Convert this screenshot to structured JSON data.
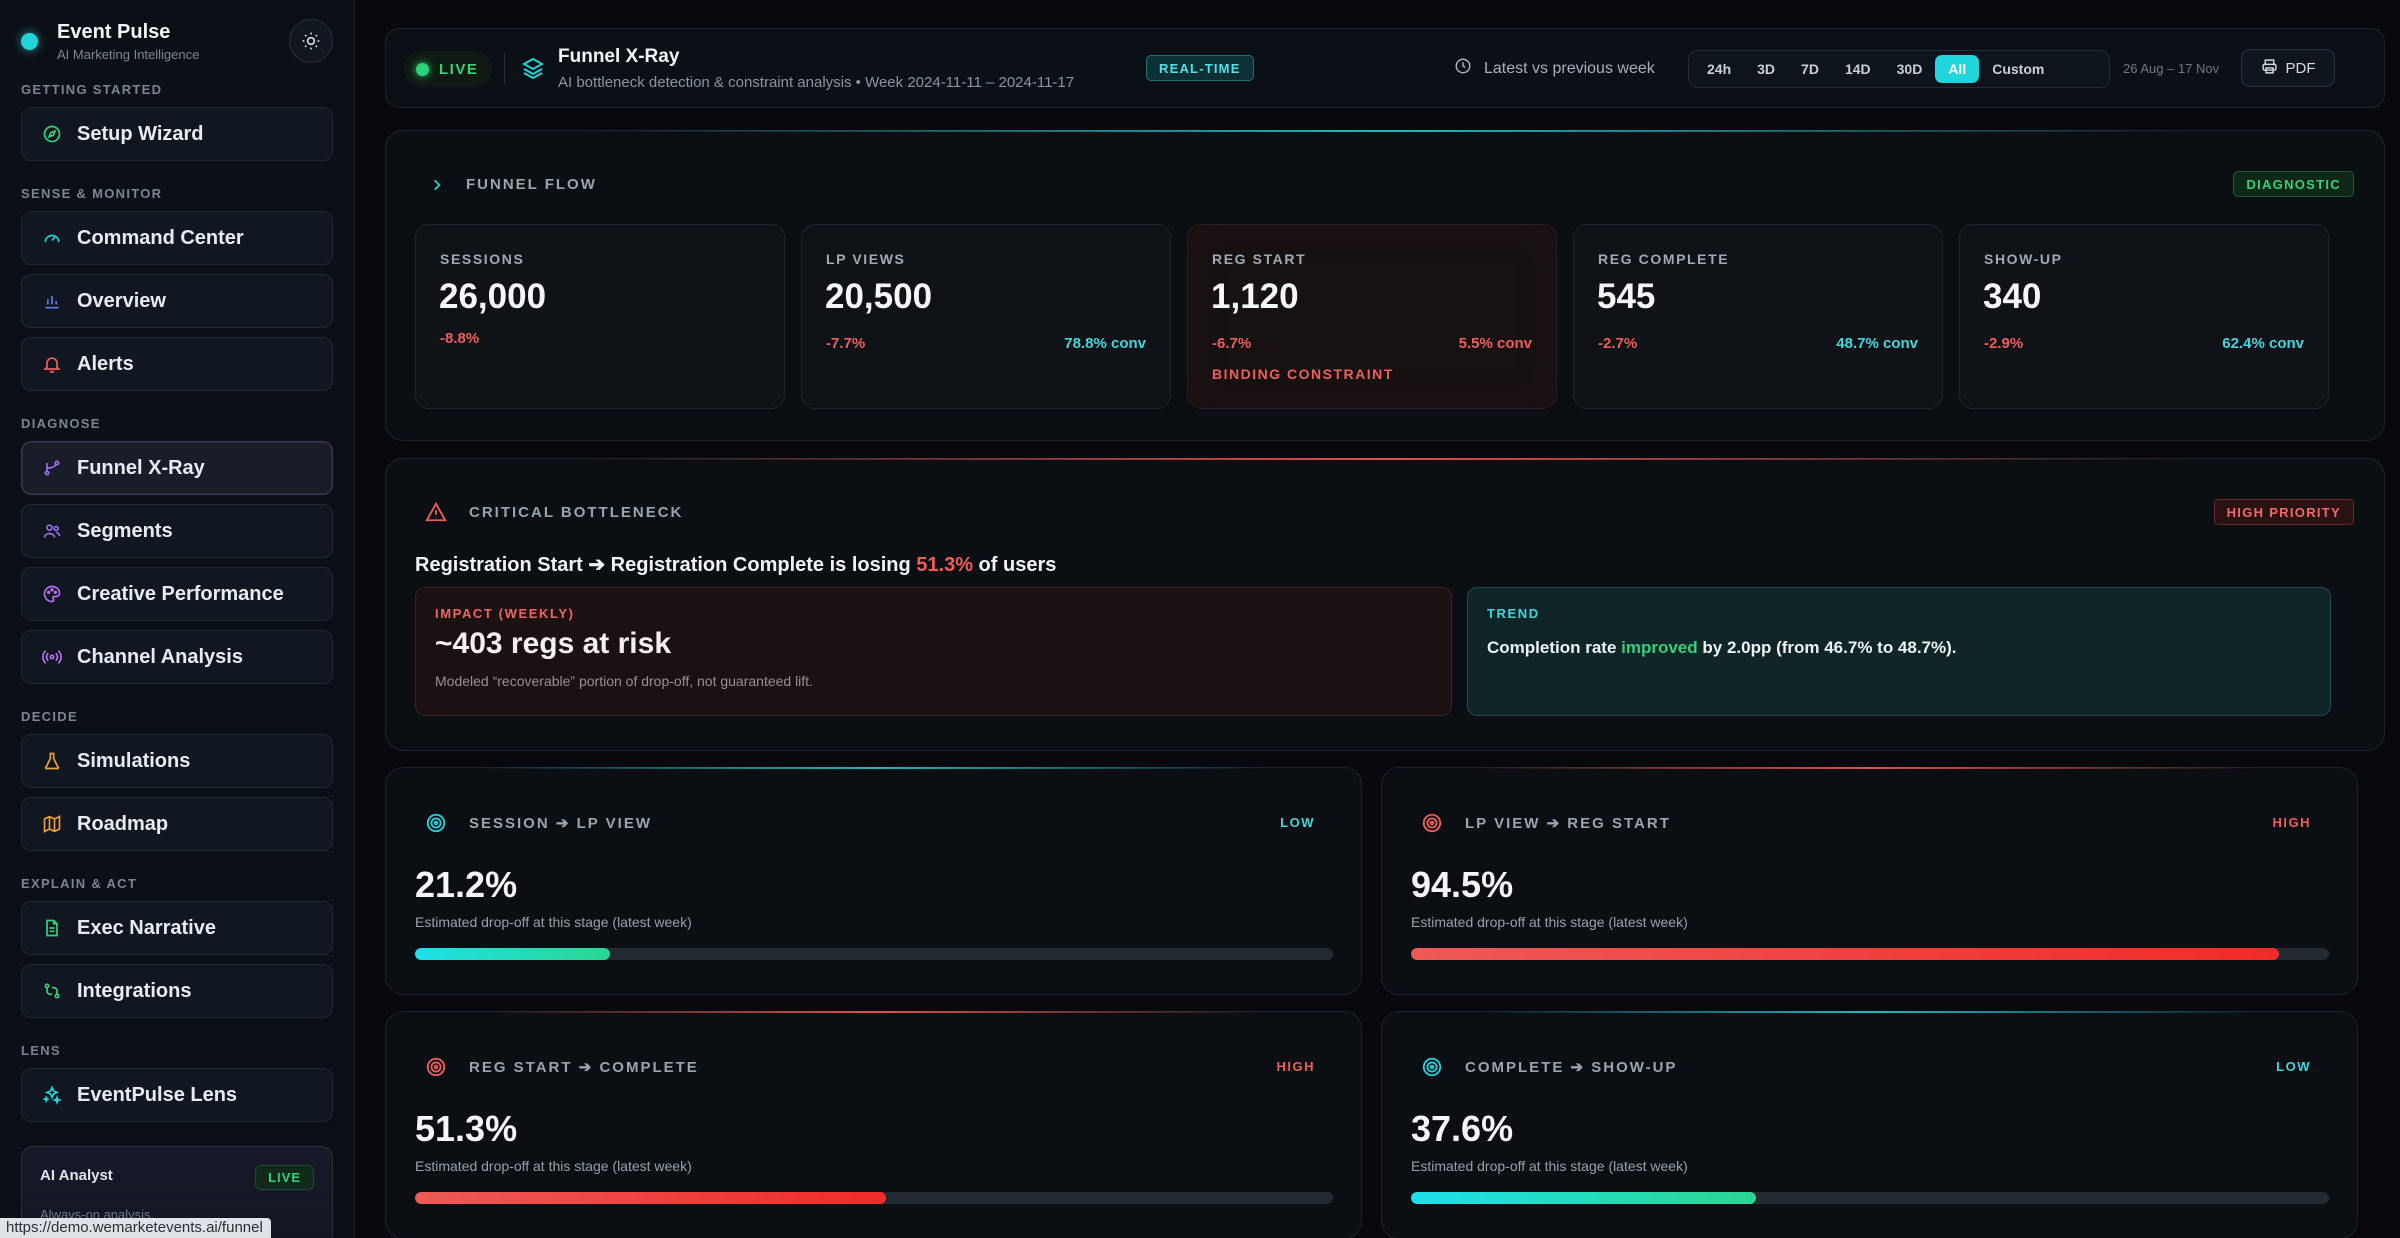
{
  "brand": {
    "name": "Event Pulse",
    "sub": "AI Marketing Intelligence"
  },
  "sidebar": {
    "sections": [
      {
        "label": "GETTING STARTED",
        "items": [
          {
            "label": "Setup Wizard",
            "icon": "compass-icon"
          }
        ]
      },
      {
        "label": "SENSE & MONITOR",
        "items": [
          {
            "label": "Command Center",
            "icon": "gauge-icon"
          },
          {
            "label": "Overview",
            "icon": "bar-chart-icon"
          },
          {
            "label": "Alerts",
            "icon": "bell-icon"
          }
        ]
      },
      {
        "label": "DIAGNOSE",
        "items": [
          {
            "label": "Funnel X-Ray",
            "icon": "git-branch-icon",
            "active": true
          },
          {
            "label": "Segments",
            "icon": "users-icon"
          },
          {
            "label": "Creative Performance",
            "icon": "palette-icon"
          },
          {
            "label": "Channel Analysis",
            "icon": "radio-icon"
          }
        ]
      },
      {
        "label": "DECIDE",
        "items": [
          {
            "label": "Simulations",
            "icon": "flask-icon"
          },
          {
            "label": "Roadmap",
            "icon": "map-icon"
          }
        ]
      },
      {
        "label": "EXPLAIN & ACT",
        "items": [
          {
            "label": "Exec Narrative",
            "icon": "file-text-icon"
          },
          {
            "label": "Integrations",
            "icon": "plug-icon"
          }
        ]
      },
      {
        "label": "LENS",
        "items": [
          {
            "label": "EventPulse Lens",
            "icon": "sparkles-icon"
          }
        ]
      }
    ],
    "ai_card": {
      "title": "AI Analyst",
      "status": "LIVE",
      "sub": "Always-on analysis."
    }
  },
  "status_url": "https://demo.wemarketevents.ai/funnel",
  "header": {
    "live": "LIVE",
    "title": "Funnel X-Ray",
    "subtitle": "AI bottleneck detection & constraint analysis • Week 2024-11-11 – 2024-11-17",
    "badge": "REAL-TIME",
    "comparison": "Latest vs previous week",
    "ranges": [
      "24h",
      "3D",
      "7D",
      "14D",
      "30D",
      "All",
      "Custom"
    ],
    "selected_range": "All",
    "dates": "26 Aug – 17 Nov",
    "pdf": "PDF"
  },
  "funnel": {
    "heading": "FUNNEL FLOW",
    "badge": "DIAGNOSTIC",
    "stages": [
      {
        "label": "SESSIONS",
        "value": "26,000",
        "change": "-8.8%",
        "conv": ""
      },
      {
        "label": "LP VIEWS",
        "value": "20,500",
        "change": "-7.7%",
        "conv": "78.8% conv"
      },
      {
        "label": "REG START",
        "value": "1,120",
        "change": "-6.7%",
        "conv": "5.5% conv",
        "note": "BINDING CONSTRAINT"
      },
      {
        "label": "REG COMPLETE",
        "value": "545",
        "change": "-2.7%",
        "conv": "48.7% conv"
      },
      {
        "label": "SHOW-UP",
        "value": "340",
        "change": "-2.9%",
        "conv": "62.4% conv"
      }
    ]
  },
  "bottleneck": {
    "heading": "CRITICAL BOTTLENECK",
    "badge": "HIGH PRIORITY",
    "title_pre": "Registration Start ➔ Registration Complete is losing ",
    "title_pct": "51.3%",
    "title_post": " of users",
    "impact": {
      "label": "IMPACT (WEEKLY)",
      "value": "~403 regs at risk",
      "note": "Modeled “recoverable” portion of drop-off, not guaranteed lift."
    },
    "trend": {
      "label": "TREND",
      "pre": "Completion rate ",
      "word": "improved",
      "post": " by 2.0pp (from 46.7% to 48.7%)."
    }
  },
  "dropoffs": [
    {
      "label": "SESSION ➔ LP VIEW",
      "level": "LOW",
      "pct": "21.2%",
      "fraction": 0.212,
      "desc": "Estimated drop-off at this stage (latest week)"
    },
    {
      "label": "LP VIEW ➔ REG START",
      "level": "HIGH",
      "pct": "94.5%",
      "fraction": 0.945,
      "desc": "Estimated drop-off at this stage (latest week)"
    },
    {
      "label": "REG START ➔ COMPLETE",
      "level": "HIGH",
      "pct": "51.3%",
      "fraction": 0.513,
      "desc": "Estimated drop-off at this stage (latest week)"
    },
    {
      "label": "COMPLETE ➔ SHOW-UP",
      "level": "LOW",
      "pct": "37.6%",
      "fraction": 0.376,
      "desc": "Estimated drop-off at this stage (latest week)"
    }
  ],
  "colors": {
    "accent": "#22d3d8",
    "danger": "#ef5f5a",
    "success": "#34d27a"
  }
}
